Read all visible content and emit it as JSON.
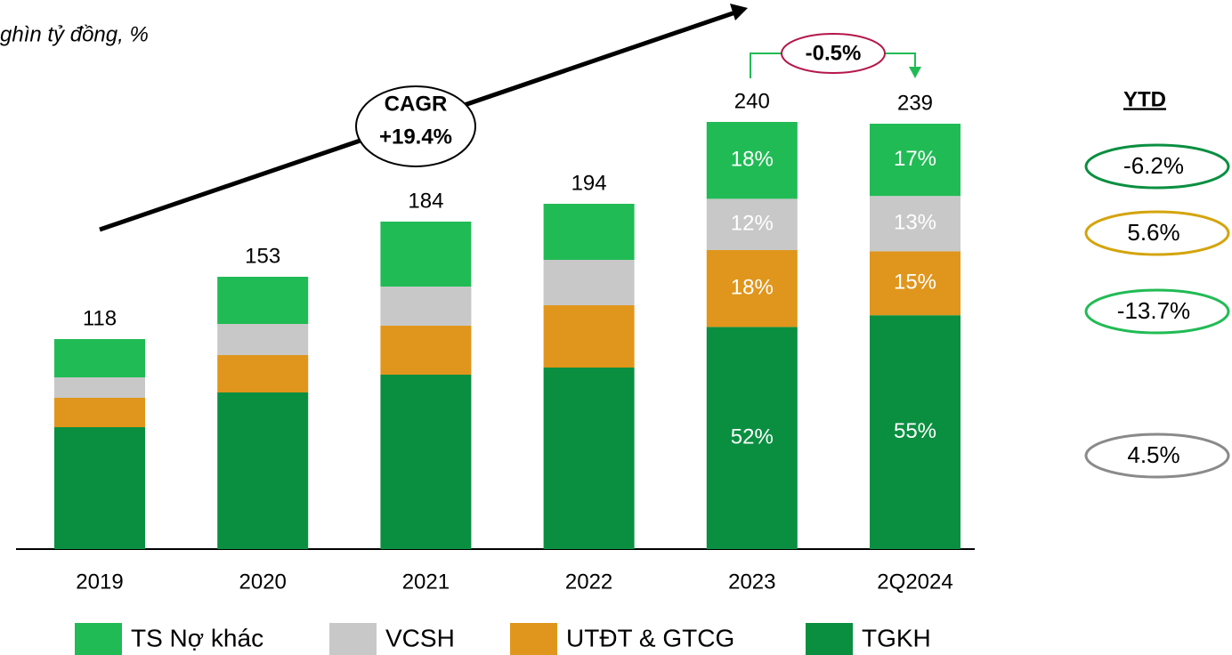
{
  "chart_data": {
    "type": "stacked_bar",
    "subtitle": "ghìn tỷ đồng, %",
    "categories": [
      "2019",
      "2020",
      "2021",
      "2022",
      "2023",
      "2Q2024"
    ],
    "totals": [
      118,
      153,
      184,
      194,
      240,
      239
    ],
    "series": [
      {
        "name": "TS Nợ khác",
        "color": "#21bb55",
        "values": [
          21.5,
          26.5,
          36.5,
          31.5,
          43.2,
          40.6
        ],
        "value_labels": [
          null,
          null,
          null,
          null,
          "18%",
          "17%"
        ]
      },
      {
        "name": "VCSH",
        "color": "#c8c8c8",
        "values": [
          11.5,
          17.5,
          22,
          25.5,
          28.8,
          31.1
        ],
        "value_labels": [
          null,
          null,
          null,
          null,
          "12%",
          "13%"
        ]
      },
      {
        "name": "UTĐT & GTCG",
        "color": "#e0961c",
        "values": [
          16.5,
          21,
          27.5,
          35,
          43.2,
          35.9
        ],
        "value_labels": [
          null,
          null,
          null,
          null,
          "18%",
          "15%"
        ]
      },
      {
        "name": "TGKH",
        "color": "#0a8f40",
        "values": [
          68.5,
          88,
          98,
          102,
          124.8,
          131.4
        ],
        "value_labels": [
          null,
          null,
          null,
          null,
          "52%",
          "55%"
        ]
      }
    ],
    "cagr": {
      "label": "CAGR",
      "value": "+19.4%"
    },
    "change": "-0.5%",
    "ytd": {
      "title": "YTD",
      "items": [
        {
          "label": "-6.2%",
          "color": "#0a8f40"
        },
        {
          "label": "5.6%",
          "color": "#d4a40c"
        },
        {
          "label": "-13.7%",
          "color": "#21bb55"
        },
        {
          "label": "4.5%",
          "color": "#8a8a8a"
        }
      ]
    }
  }
}
